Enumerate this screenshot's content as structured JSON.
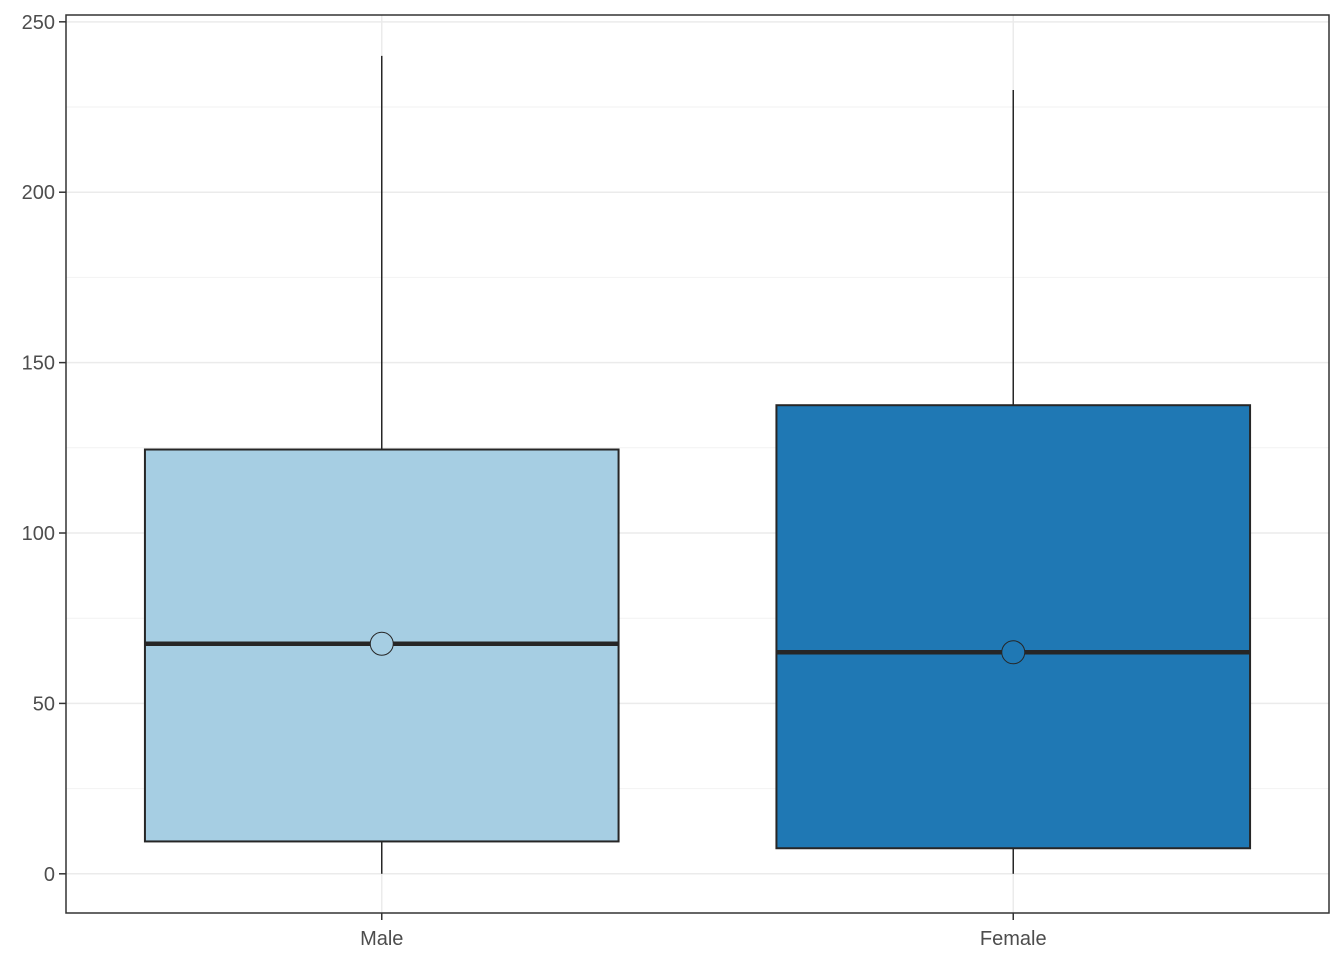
{
  "chart_data": {
    "type": "box",
    "title": "",
    "xlabel": "",
    "ylabel": "",
    "ylim": [
      -11.5,
      252
    ],
    "y_ticks": [
      0,
      50,
      100,
      150,
      200,
      250
    ],
    "y_tick_labels": [
      "0",
      "50",
      "100",
      "150",
      "200",
      "250"
    ],
    "y_minor_ticks": [
      25,
      75,
      125,
      175,
      225
    ],
    "grid": true,
    "categories": [
      "Male",
      "Female"
    ],
    "boxes": [
      {
        "category": "Male",
        "whisker_low": 0,
        "q1": 9.5,
        "median": 67.5,
        "q3": 124.5,
        "whisker_high": 240,
        "mean": 67.5,
        "fill": "#a6cee3"
      },
      {
        "category": "Female",
        "whisker_low": 0,
        "q1": 7.5,
        "median": 65,
        "q3": 137.5,
        "whisker_high": 230,
        "mean": 65,
        "fill": "#1f78b4"
      }
    ],
    "colors": {
      "box_outline": "#262626",
      "grid_major": "#ebebeb",
      "grid_minor": "#f2f2f2",
      "axis_text": "#4d4d4d",
      "panel_border": "#333333"
    }
  }
}
